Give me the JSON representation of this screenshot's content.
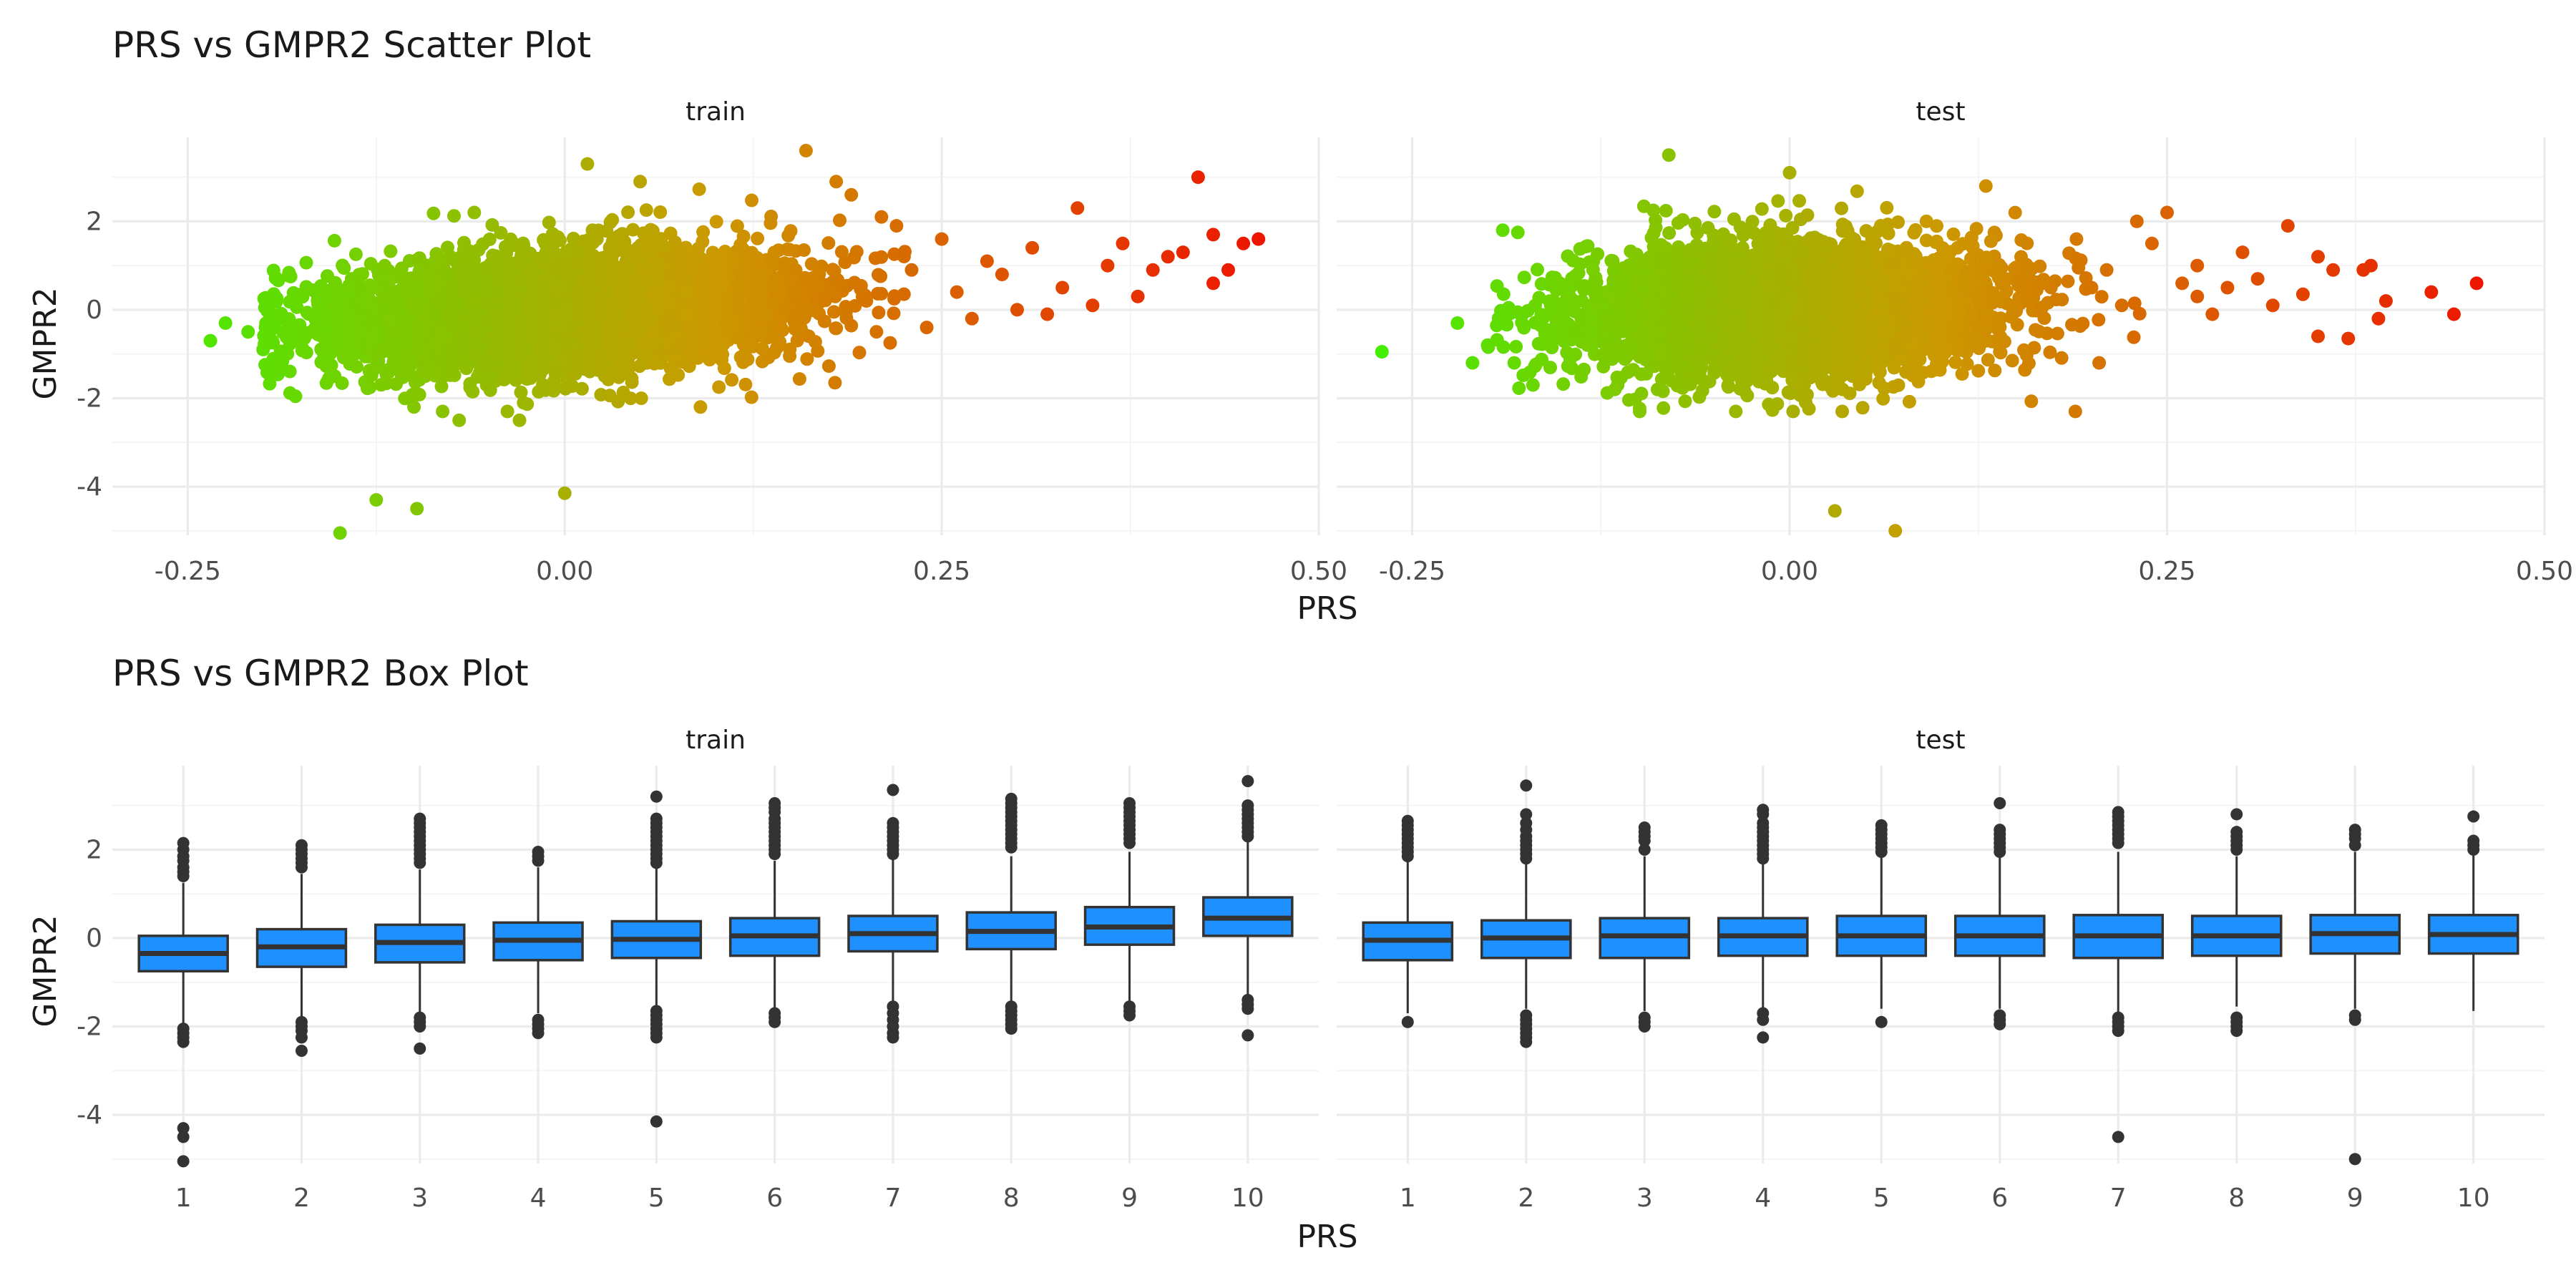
{
  "chart_data": [
    {
      "type": "scatter",
      "title": "PRS vs GMPR2 Scatter Plot",
      "xlabel": "PRS",
      "ylabel": "GMPR2",
      "facets": [
        "train",
        "test"
      ],
      "xlim": [
        -0.3,
        0.5
      ],
      "ylim": [
        -5.1,
        3.9
      ],
      "x_ticks": [
        "-0.25",
        "0.00",
        "0.25",
        "0.50"
      ],
      "y_ticks": [
        "-4",
        "-2",
        "0",
        "2"
      ],
      "color_scale": {
        "low": "#44ee00",
        "mid": "#cc9900",
        "high": "#ee1100"
      },
      "panels": [
        {
          "name": "train",
          "n_points": 5000,
          "trend": {
            "x_mean": 0.0,
            "x_sd": 0.075,
            "slope": 3.6,
            "resid_sd": 0.65
          },
          "extreme_points": [
            [
              -0.149,
              -5.05
            ],
            [
              -0.125,
              -4.3
            ],
            [
              -0.098,
              -4.5
            ],
            [
              0.0,
              -4.15
            ],
            [
              -0.235,
              -0.7
            ],
            [
              -0.225,
              -0.3
            ],
            [
              -0.2,
              -0.9
            ],
            [
              -0.21,
              -0.5
            ],
            [
              0.015,
              3.3
            ],
            [
              0.16,
              3.6
            ],
            [
              0.42,
              3.0
            ],
            [
              0.46,
              1.6
            ],
            [
              0.45,
              1.5
            ],
            [
              0.44,
              0.9
            ],
            [
              0.43,
              0.6
            ],
            [
              0.43,
              1.7
            ],
            [
              0.4,
              1.2
            ],
            [
              0.38,
              0.3
            ],
            [
              0.36,
              1.0
            ],
            [
              0.34,
              2.3
            ],
            [
              0.33,
              0.5
            ],
            [
              0.31,
              1.4
            ],
            [
              0.3,
              0.0
            ],
            [
              0.29,
              0.8
            ],
            [
              0.28,
              1.1
            ],
            [
              0.27,
              -0.2
            ],
            [
              0.35,
              0.1
            ],
            [
              0.37,
              1.5
            ],
            [
              0.39,
              0.9
            ],
            [
              0.41,
              1.3
            ],
            [
              0.32,
              -0.1
            ],
            [
              0.26,
              0.4
            ],
            [
              0.25,
              1.6
            ],
            [
              0.24,
              -0.4
            ],
            [
              0.23,
              0.9
            ],
            [
              0.22,
              1.9
            ],
            [
              0.21,
              2.1
            ],
            [
              0.19,
              2.6
            ],
            [
              0.18,
              2.9
            ],
            [
              0.2,
              0.2
            ],
            [
              -0.06,
              2.2
            ],
            [
              0.05,
              2.9
            ],
            [
              -0.1,
              -2.2
            ],
            [
              -0.03,
              -2.5
            ],
            [
              -0.07,
              -2.5
            ],
            [
              0.09,
              -2.2
            ]
          ]
        },
        {
          "name": "test",
          "n_points": 4000,
          "trend": {
            "x_mean": 0.0,
            "x_sd": 0.07,
            "slope": 1.5,
            "resid_sd": 0.75
          },
          "extreme_points": [
            [
              -0.27,
              -0.95
            ],
            [
              -0.21,
              -1.2
            ],
            [
              -0.2,
              -0.8
            ],
            [
              -0.19,
              1.8
            ],
            [
              -0.18,
              1.75
            ],
            [
              -0.17,
              -1.7
            ],
            [
              -0.22,
              -0.3
            ],
            [
              -0.08,
              3.5
            ],
            [
              0.03,
              -4.55
            ],
            [
              0.07,
              -5.0
            ],
            [
              0.0,
              3.1
            ],
            [
              0.13,
              2.8
            ],
            [
              0.455,
              0.6
            ],
            [
              0.44,
              -0.1
            ],
            [
              0.425,
              0.4
            ],
            [
              0.39,
              -0.2
            ],
            [
              0.385,
              1.0
            ],
            [
              0.37,
              -0.65
            ],
            [
              0.35,
              1.2
            ],
            [
              0.34,
              0.35
            ],
            [
              0.33,
              1.9
            ],
            [
              0.32,
              0.1
            ],
            [
              0.3,
              1.3
            ],
            [
              0.29,
              0.5
            ],
            [
              0.28,
              -0.1
            ],
            [
              0.27,
              1.0
            ],
            [
              0.26,
              0.6
            ],
            [
              0.25,
              2.2
            ],
            [
              0.24,
              1.5
            ],
            [
              0.23,
              2.0
            ],
            [
              0.22,
              0.1
            ],
            [
              0.21,
              0.9
            ],
            [
              0.205,
              -1.2
            ],
            [
              0.36,
              0.9
            ],
            [
              0.31,
              0.7
            ],
            [
              0.395,
              0.2
            ],
            [
              0.38,
              0.9
            ],
            [
              0.35,
              -0.6
            ],
            [
              0.2,
              0.5
            ],
            [
              0.19,
              1.6
            ],
            [
              0.27,
              0.3
            ]
          ]
        }
      ]
    },
    {
      "type": "box",
      "title": "PRS vs GMPR2 Box Plot",
      "xlabel": "PRS",
      "ylabel": "GMPR2",
      "facets": [
        "train",
        "test"
      ],
      "categories": [
        "1",
        "2",
        "3",
        "4",
        "5",
        "6",
        "7",
        "8",
        "9",
        "10"
      ],
      "ylim": [
        -5.1,
        3.9
      ],
      "y_ticks": [
        "-4",
        "-2",
        "0",
        "2"
      ],
      "fill": "#1e90ff",
      "stroke": "#333333",
      "panels": [
        {
          "name": "train",
          "boxes": [
            {
              "q1": -0.75,
              "median": -0.35,
              "q3": 0.05,
              "lower": -1.95,
              "upper": 1.25,
              "outliers": [
                2.15,
                2.0,
                1.85,
                1.75,
                1.6,
                1.5,
                1.4,
                -2.05,
                -2.15,
                -2.25,
                -2.35,
                -4.3,
                -4.5,
                -5.05
              ]
            },
            {
              "q1": -0.65,
              "median": -0.2,
              "q3": 0.2,
              "lower": -1.85,
              "upper": 1.45,
              "outliers": [
                2.1,
                2.0,
                1.9,
                1.8,
                1.7,
                1.6,
                -1.9,
                -2.0,
                -2.1,
                -2.25,
                -2.55
              ]
            },
            {
              "q1": -0.55,
              "median": -0.1,
              "q3": 0.3,
              "lower": -1.75,
              "upper": 1.55,
              "outliers": [
                2.7,
                2.6,
                2.5,
                2.4,
                2.3,
                2.2,
                2.1,
                2.0,
                1.9,
                1.8,
                1.7,
                -1.8,
                -1.9,
                -2.0,
                -2.5
              ]
            },
            {
              "q1": -0.5,
              "median": -0.05,
              "q3": 0.35,
              "lower": -1.7,
              "upper": 1.6,
              "outliers": [
                1.95,
                1.85,
                1.75,
                -1.85,
                -1.95,
                -2.05,
                -2.15
              ]
            },
            {
              "q1": -0.45,
              "median": -0.03,
              "q3": 0.38,
              "lower": -1.6,
              "upper": 1.65,
              "outliers": [
                3.2,
                2.7,
                2.6,
                2.5,
                2.4,
                2.3,
                2.2,
                2.1,
                2.0,
                1.9,
                1.8,
                1.7,
                -1.65,
                -1.75,
                -1.85,
                -1.95,
                -2.05,
                -2.15,
                -2.25,
                -4.15
              ]
            },
            {
              "q1": -0.4,
              "median": 0.05,
              "q3": 0.45,
              "lower": -1.6,
              "upper": 1.75,
              "outliers": [
                3.05,
                2.95,
                2.85,
                2.7,
                2.6,
                2.5,
                2.4,
                2.3,
                2.2,
                2.1,
                2.0,
                1.9,
                -1.7,
                -1.8,
                -1.9
              ]
            },
            {
              "q1": -0.3,
              "median": 0.1,
              "q3": 0.5,
              "lower": -1.45,
              "upper": 1.8,
              "outliers": [
                3.35,
                2.6,
                2.5,
                2.4,
                2.3,
                2.2,
                2.1,
                2.0,
                1.9,
                -1.55,
                -1.7,
                -1.85,
                -2.0,
                -2.15,
                -2.25
              ]
            },
            {
              "q1": -0.25,
              "median": 0.15,
              "q3": 0.58,
              "lower": -1.45,
              "upper": 1.85,
              "outliers": [
                3.15,
                3.05,
                2.95,
                2.85,
                2.75,
                2.65,
                2.55,
                2.45,
                2.35,
                2.25,
                2.15,
                2.05,
                -1.55,
                -1.65,
                -1.75,
                -1.85,
                -1.95,
                -2.05
              ]
            },
            {
              "q1": -0.15,
              "median": 0.25,
              "q3": 0.7,
              "lower": -1.45,
              "upper": 1.95,
              "outliers": [
                3.05,
                2.95,
                2.85,
                2.75,
                2.65,
                2.55,
                2.45,
                2.35,
                2.25,
                2.15,
                -1.55,
                -1.65,
                -1.75
              ]
            },
            {
              "q1": 0.05,
              "median": 0.45,
              "q3": 0.92,
              "lower": -1.3,
              "upper": 2.2,
              "outliers": [
                3.55,
                3.0,
                2.9,
                2.8,
                2.7,
                2.6,
                2.5,
                2.4,
                2.3,
                -1.4,
                -1.5,
                -1.6,
                -2.2
              ]
            }
          ]
        },
        {
          "name": "test",
          "boxes": [
            {
              "q1": -0.5,
              "median": -0.05,
              "q3": 0.35,
              "lower": -1.7,
              "upper": 1.75,
              "outliers": [
                2.65,
                2.55,
                2.45,
                2.35,
                2.25,
                2.15,
                2.05,
                1.95,
                1.85,
                -1.9
              ]
            },
            {
              "q1": -0.45,
              "median": 0.0,
              "q3": 0.4,
              "lower": -1.6,
              "upper": 1.75,
              "outliers": [
                3.45,
                2.8,
                2.6,
                2.45,
                2.3,
                2.2,
                2.1,
                2.0,
                1.9,
                1.8,
                -1.75,
                -1.85,
                -1.95,
                -2.05,
                -2.15,
                -2.25,
                -2.35
              ]
            },
            {
              "q1": -0.45,
              "median": 0.05,
              "q3": 0.45,
              "lower": -1.65,
              "upper": 1.85,
              "outliers": [
                2.5,
                2.4,
                2.3,
                2.2,
                2.0,
                -1.8,
                -1.9,
                -2.0
              ]
            },
            {
              "q1": -0.4,
              "median": 0.05,
              "q3": 0.45,
              "lower": -1.6,
              "upper": 1.7,
              "outliers": [
                2.9,
                2.8,
                2.6,
                2.5,
                2.4,
                2.3,
                2.2,
                2.1,
                2.0,
                1.9,
                1.8,
                -1.7,
                -1.85,
                -2.25
              ]
            },
            {
              "q1": -0.4,
              "median": 0.05,
              "q3": 0.5,
              "lower": -1.6,
              "upper": 1.85,
              "outliers": [
                2.55,
                2.45,
                2.35,
                2.25,
                2.15,
                2.05,
                1.95,
                -1.9
              ]
            },
            {
              "q1": -0.4,
              "median": 0.05,
              "q3": 0.5,
              "lower": -1.6,
              "upper": 1.85,
              "outliers": [
                3.05,
                2.45,
                2.35,
                2.25,
                2.15,
                2.05,
                1.95,
                -1.75,
                -1.85,
                -1.95
              ]
            },
            {
              "q1": -0.45,
              "median": 0.05,
              "q3": 0.52,
              "lower": -1.7,
              "upper": 1.95,
              "outliers": [
                2.85,
                2.75,
                2.65,
                2.55,
                2.45,
                2.35,
                2.25,
                2.15,
                -1.8,
                -1.9,
                -2.0,
                -2.1,
                -4.5
              ]
            },
            {
              "q1": -0.4,
              "median": 0.05,
              "q3": 0.5,
              "lower": -1.55,
              "upper": 1.85,
              "outliers": [
                2.8,
                2.4,
                2.3,
                2.2,
                2.1,
                2.0,
                -1.8,
                -1.9,
                -2.0,
                -2.1
              ]
            },
            {
              "q1": -0.35,
              "median": 0.1,
              "q3": 0.52,
              "lower": -1.6,
              "upper": 1.95,
              "outliers": [
                2.45,
                2.35,
                2.25,
                2.1,
                -1.75,
                -1.85,
                -5.0
              ]
            },
            {
              "q1": -0.35,
              "median": 0.08,
              "q3": 0.52,
              "lower": -1.65,
              "upper": 1.95,
              "outliers": [
                2.75,
                2.2,
                2.1,
                2.0
              ]
            }
          ]
        }
      ]
    }
  ]
}
